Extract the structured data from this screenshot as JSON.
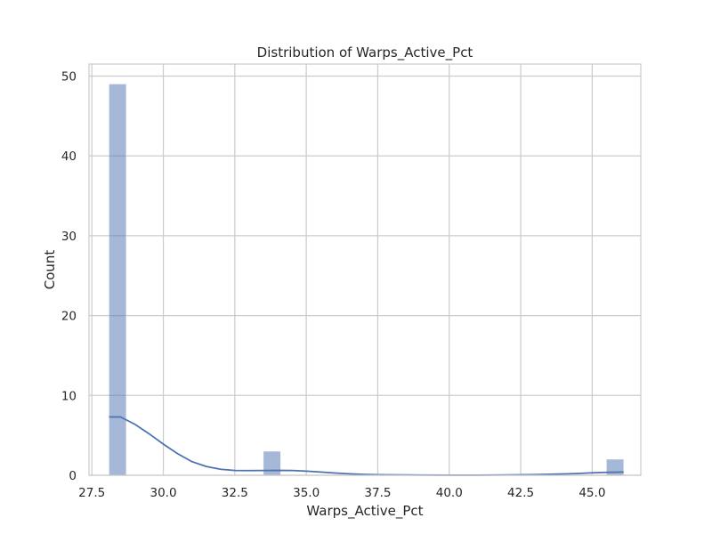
{
  "chart_data": {
    "type": "histogram",
    "title": "Distribution of Warps_Active_Pct",
    "xlabel": "Warps_Active_Pct",
    "ylabel": "Count",
    "xlim": [
      27.4,
      46.7
    ],
    "ylim": [
      0,
      51.5
    ],
    "xticks": [
      27.5,
      30.0,
      32.5,
      35.0,
      37.5,
      40.0,
      42.5,
      45.0
    ],
    "xtick_labels": [
      "27.5",
      "30.0",
      "32.5",
      "35.0",
      "37.5",
      "40.0",
      "42.5",
      "45.0"
    ],
    "yticks": [
      0,
      10,
      20,
      30,
      40,
      50
    ],
    "ytick_labels": [
      "0",
      "10",
      "20",
      "30",
      "40",
      "50"
    ],
    "grid": true,
    "bars": [
      {
        "x0": 28.1,
        "x1": 28.7,
        "count": 49
      },
      {
        "x0": 33.5,
        "x1": 34.1,
        "count": 3
      },
      {
        "x0": 45.5,
        "x1": 46.1,
        "count": 2
      }
    ],
    "kde": [
      [
        28.1,
        7.3
      ],
      [
        28.5,
        7.3
      ],
      [
        29.0,
        6.4
      ],
      [
        29.5,
        5.2
      ],
      [
        30.0,
        3.9
      ],
      [
        30.5,
        2.7
      ],
      [
        31.0,
        1.7
      ],
      [
        31.5,
        1.1
      ],
      [
        32.0,
        0.75
      ],
      [
        32.5,
        0.6
      ],
      [
        33.0,
        0.58
      ],
      [
        33.5,
        0.6
      ],
      [
        34.0,
        0.62
      ],
      [
        34.5,
        0.6
      ],
      [
        35.0,
        0.52
      ],
      [
        35.5,
        0.4
      ],
      [
        36.0,
        0.28
      ],
      [
        36.5,
        0.18
      ],
      [
        37.0,
        0.11
      ],
      [
        37.5,
        0.07
      ],
      [
        38.0,
        0.05
      ],
      [
        39.0,
        0.03
      ],
      [
        40.0,
        0.02
      ],
      [
        41.0,
        0.02
      ],
      [
        42.0,
        0.04
      ],
      [
        43.0,
        0.08
      ],
      [
        44.0,
        0.16
      ],
      [
        44.5,
        0.22
      ],
      [
        45.0,
        0.3
      ],
      [
        45.5,
        0.36
      ],
      [
        46.1,
        0.4
      ]
    ],
    "colors": {
      "bar_fill": "#4c72b0",
      "bar_opacity": 0.5,
      "kde_line": "#4c72b0",
      "grid": "#cccccc",
      "frame": "#cccccc",
      "text": "#262626"
    }
  }
}
